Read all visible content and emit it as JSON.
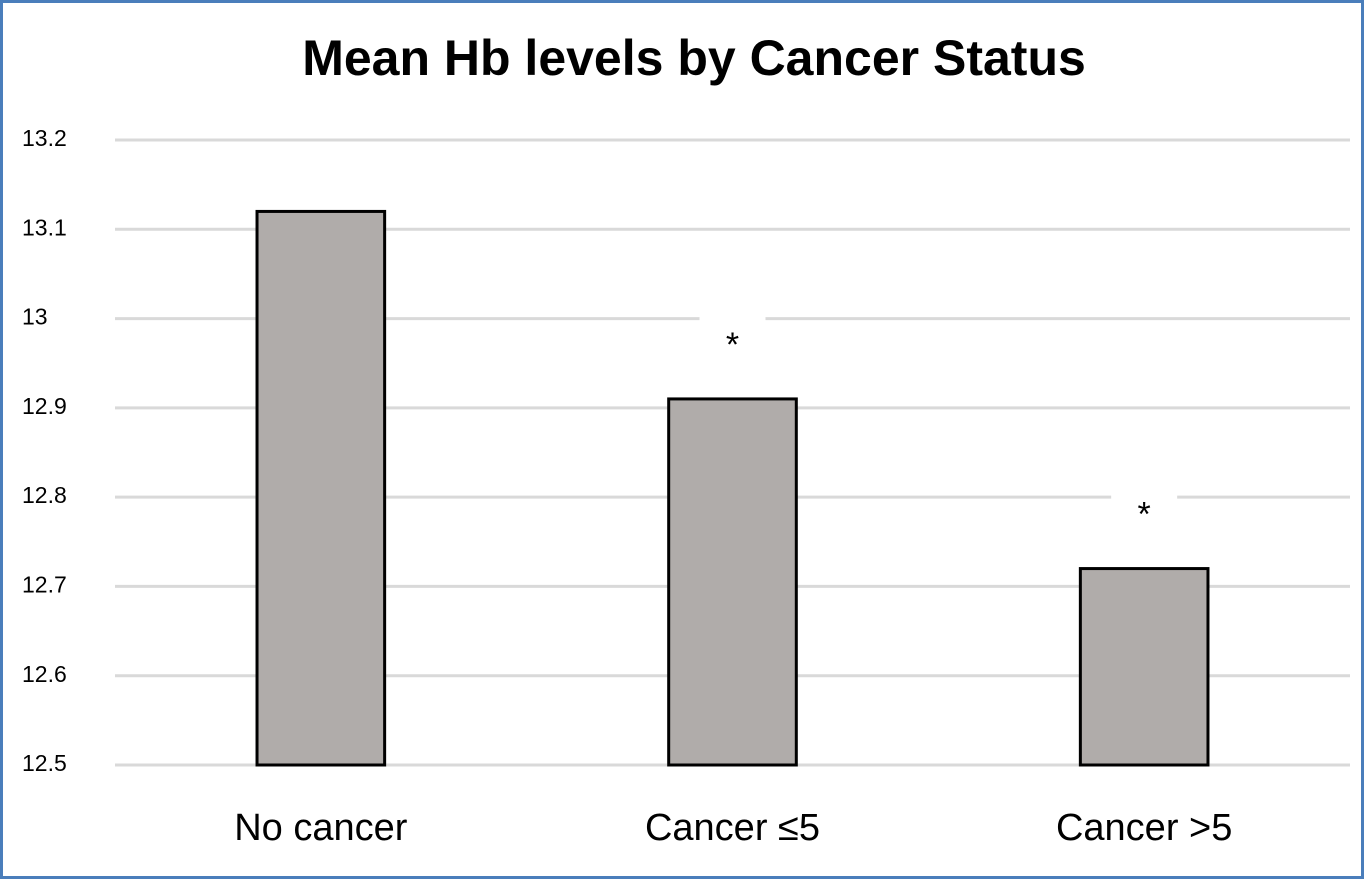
{
  "chart_data": {
    "type": "bar",
    "title": "Mean Hb levels by Cancer Status",
    "categories": [
      "No cancer",
      "Cancer ≤5",
      "Cancer >5"
    ],
    "values": [
      13.12,
      12.91,
      12.72
    ],
    "value_annotations": [
      null,
      "*",
      "*"
    ],
    "color": "#b0acaa",
    "ylim": [
      12.5,
      13.2
    ],
    "yticks": [
      12.5,
      12.6,
      12.7,
      12.8,
      12.9,
      13,
      13.1,
      13.2
    ],
    "grid": true
  }
}
